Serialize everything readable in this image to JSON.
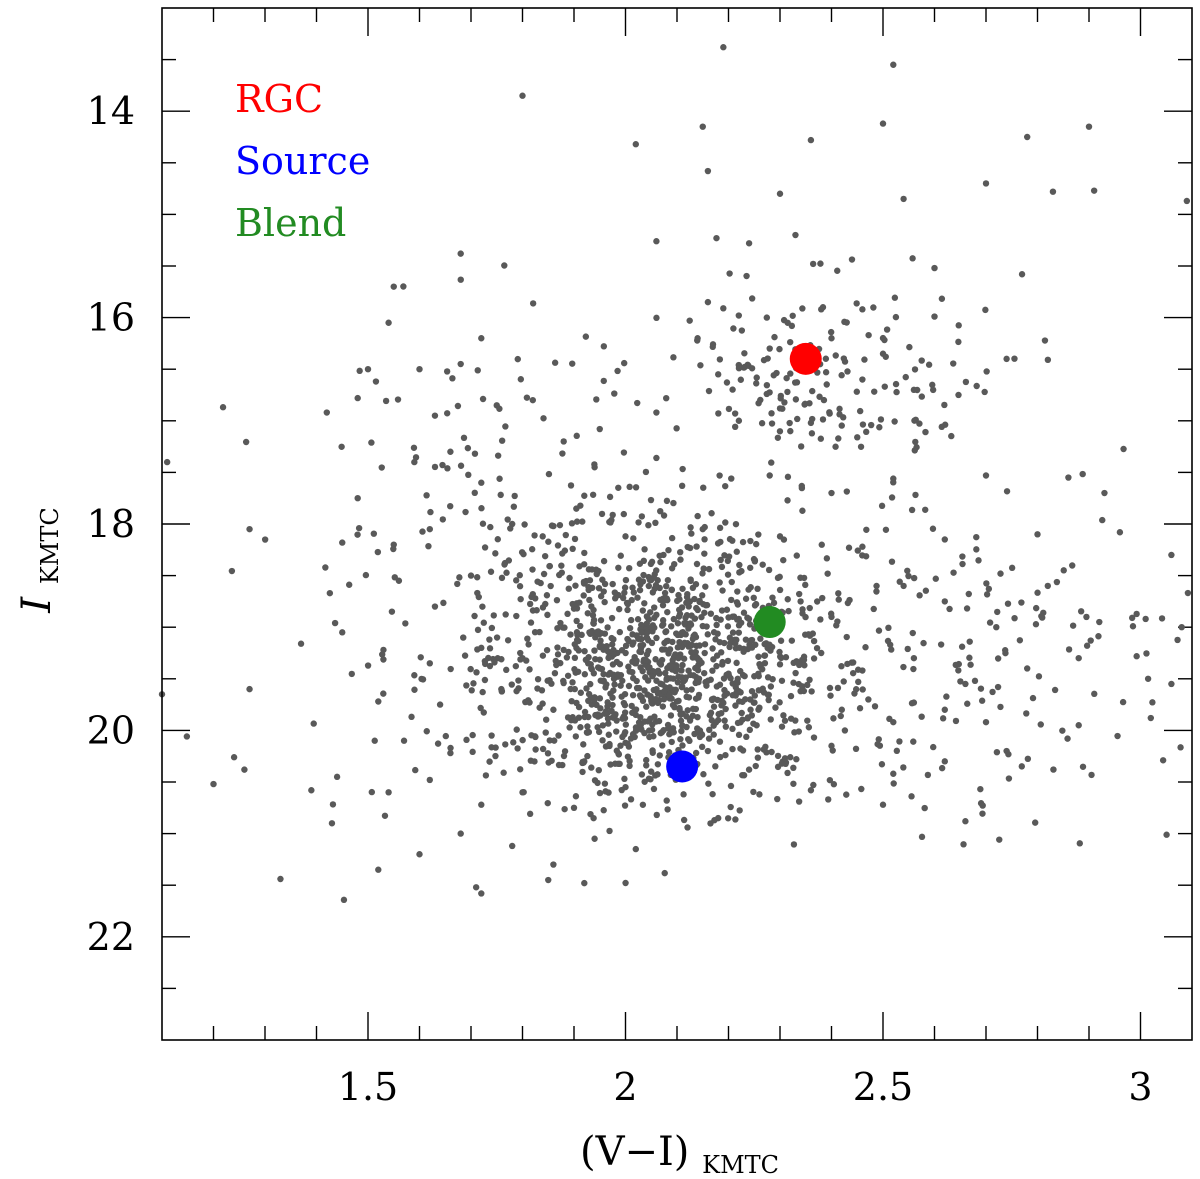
{
  "chart_data": {
    "type": "scatter",
    "title": "",
    "xlabel": {
      "main": "(V−I)",
      "sub": "KMTC"
    },
    "ylabel": {
      "main": "I",
      "sub": "KMTC"
    },
    "xlim": [
      1.1,
      3.1
    ],
    "ylim": [
      23.0,
      13.0
    ],
    "y_inverted": true,
    "grid": false,
    "legend_position": "top-left",
    "x_ticks": [
      {
        "value": 1.5,
        "label": "1.5"
      },
      {
        "value": 2.0,
        "label": "2"
      },
      {
        "value": 2.5,
        "label": "2.5"
      },
      {
        "value": 3.0,
        "label": "3"
      }
    ],
    "y_ticks": [
      {
        "value": 14,
        "label": "14"
      },
      {
        "value": 16,
        "label": "16"
      },
      {
        "value": 18,
        "label": "18"
      },
      {
        "value": 20,
        "label": "20"
      },
      {
        "value": 22,
        "label": "22"
      }
    ],
    "field_stars": {
      "color": "#595959",
      "description_points": [
        [
          1.8,
          13.85
        ],
        [
          2.19,
          13.38
        ],
        [
          2.52,
          13.55
        ],
        [
          2.02,
          14.32
        ],
        [
          2.15,
          14.15
        ],
        [
          2.16,
          14.58
        ],
        [
          2.3,
          14.8
        ],
        [
          2.36,
          14.28
        ],
        [
          2.5,
          14.12
        ],
        [
          2.78,
          14.25
        ],
        [
          2.9,
          14.15
        ],
        [
          2.54,
          14.85
        ],
        [
          2.7,
          14.7
        ],
        [
          2.33,
          15.2
        ],
        [
          2.06,
          15.26
        ],
        [
          1.68,
          15.38
        ],
        [
          2.24,
          15.28
        ],
        [
          2.6,
          15.52
        ],
        [
          2.77,
          15.58
        ],
        [
          2.83,
          14.78
        ],
        [
          2.91,
          14.77
        ],
        [
          3.09,
          14.87
        ],
        [
          1.54,
          16.05
        ],
        [
          1.55,
          15.7
        ],
        [
          1.72,
          16.2
        ],
        [
          2.16,
          15.85
        ],
        [
          2.22,
          15.98
        ],
        [
          2.38,
          15.92
        ],
        [
          2.46,
          15.92
        ],
        [
          2.6,
          15.99
        ],
        [
          2.4,
          16.2
        ],
        [
          2.28,
          16.3
        ],
        [
          2.5,
          16.35
        ],
        [
          2.46,
          16.6
        ],
        [
          2.18,
          16.55
        ],
        [
          2.56,
          16.7
        ],
        [
          2.74,
          16.4
        ],
        [
          2.14,
          16.2
        ],
        [
          2.22,
          16.46
        ],
        [
          2.3,
          16.88
        ],
        [
          2.32,
          17.1
        ],
        [
          2.45,
          17.16
        ],
        [
          2.36,
          17.02
        ],
        [
          1.42,
          16.92
        ],
        [
          1.48,
          16.78
        ],
        [
          1.5,
          16.5
        ],
        [
          1.6,
          16.5
        ],
        [
          1.68,
          16.45
        ],
        [
          1.63,
          16.95
        ],
        [
          1.75,
          16.85
        ],
        [
          1.82,
          16.8
        ],
        [
          1.88,
          17.2
        ],
        [
          1.95,
          17.08
        ],
        [
          2.06,
          16.92
        ],
        [
          1.66,
          17.3
        ],
        [
          1.59,
          17.4
        ],
        [
          1.72,
          17.6
        ],
        [
          1.94,
          17.45
        ],
        [
          2.06,
          17.36
        ],
        [
          2.11,
          17.63
        ],
        [
          2.28,
          17.53
        ],
        [
          2.4,
          17.7
        ],
        [
          2.52,
          17.56
        ],
        [
          2.7,
          17.53
        ],
        [
          2.86,
          17.55
        ],
        [
          2.93,
          17.7
        ],
        [
          1.11,
          17.4
        ],
        [
          1.48,
          17.75
        ],
        [
          1.55,
          18.2
        ],
        [
          1.27,
          18.05
        ],
        [
          1.45,
          18.18
        ],
        [
          1.62,
          18.05
        ],
        [
          1.78,
          18.0
        ],
        [
          1.86,
          18.02
        ],
        [
          1.92,
          18.28
        ],
        [
          2.0,
          18.12
        ],
        [
          2.15,
          18.05
        ],
        [
          2.3,
          18.12
        ],
        [
          2.46,
          18.22
        ],
        [
          2.62,
          18.15
        ],
        [
          2.8,
          18.1
        ],
        [
          2.96,
          18.08
        ],
        [
          3.06,
          18.3
        ],
        [
          1.56,
          18.55
        ],
        [
          1.63,
          18.8
        ],
        [
          1.7,
          18.5
        ],
        [
          1.82,
          18.68
        ],
        [
          1.9,
          18.82
        ],
        [
          1.98,
          18.72
        ],
        [
          2.06,
          18.88
        ],
        [
          2.12,
          18.68
        ],
        [
          2.22,
          18.92
        ],
        [
          2.34,
          18.75
        ],
        [
          2.4,
          18.9
        ],
        [
          2.54,
          18.6
        ],
        [
          2.62,
          18.75
        ],
        [
          2.72,
          19.0
        ],
        [
          2.82,
          18.6
        ],
        [
          2.92,
          18.95
        ],
        [
          3.01,
          18.92
        ],
        [
          3.08,
          19.0
        ],
        [
          1.37,
          19.16
        ],
        [
          1.45,
          19.05
        ],
        [
          1.53,
          19.22
        ],
        [
          1.62,
          19.35
        ],
        [
          1.72,
          19.2
        ],
        [
          1.8,
          19.3
        ],
        [
          1.88,
          19.22
        ],
        [
          1.95,
          19.4
        ],
        [
          2.02,
          19.35
        ],
        [
          2.08,
          19.5
        ],
        [
          2.14,
          19.3
        ],
        [
          2.2,
          19.45
        ],
        [
          2.3,
          19.36
        ],
        [
          2.38,
          19.25
        ],
        [
          2.46,
          19.42
        ],
        [
          2.56,
          19.3
        ],
        [
          2.66,
          19.55
        ],
        [
          2.78,
          19.4
        ],
        [
          2.88,
          19.3
        ],
        [
          3.06,
          19.55
        ],
        [
          1.1,
          19.65
        ],
        [
          1.27,
          19.6
        ],
        [
          1.52,
          19.72
        ],
        [
          1.64,
          19.75
        ],
        [
          1.76,
          19.62
        ],
        [
          1.86,
          19.8
        ],
        [
          1.94,
          19.68
        ],
        [
          2.02,
          19.85
        ],
        [
          2.1,
          19.72
        ],
        [
          2.18,
          19.9
        ],
        [
          2.26,
          19.78
        ],
        [
          2.34,
          19.62
        ],
        [
          2.42,
          19.8
        ],
        [
          2.52,
          19.92
        ],
        [
          2.62,
          19.8
        ],
        [
          2.7,
          19.92
        ],
        [
          2.88,
          19.95
        ],
        [
          3.02,
          19.88
        ],
        [
          1.57,
          20.1
        ],
        [
          1.66,
          20.22
        ],
        [
          1.74,
          20.05
        ],
        [
          1.84,
          20.18
        ],
        [
          1.92,
          20.3
        ],
        [
          2.0,
          20.12
        ],
        [
          2.16,
          20.2
        ],
        [
          2.24,
          20.38
        ],
        [
          2.32,
          20.26
        ],
        [
          2.4,
          20.15
        ],
        [
          2.52,
          20.42
        ],
        [
          2.62,
          20.3
        ],
        [
          2.74,
          20.2
        ],
        [
          1.24,
          20.26
        ],
        [
          1.26,
          20.38
        ],
        [
          1.44,
          20.45
        ],
        [
          1.54,
          20.6
        ],
        [
          1.62,
          20.48
        ],
        [
          1.72,
          20.72
        ],
        [
          1.8,
          20.6
        ],
        [
          1.9,
          20.75
        ],
        [
          2.0,
          20.55
        ],
        [
          2.08,
          20.68
        ],
        [
          2.18,
          20.85
        ],
        [
          2.26,
          20.62
        ],
        [
          2.36,
          20.58
        ],
        [
          2.5,
          20.72
        ],
        [
          2.66,
          20.88
        ],
        [
          1.2,
          20.52
        ],
        [
          1.39,
          20.58
        ],
        [
          1.43,
          20.9
        ],
        [
          1.52,
          21.35
        ],
        [
          1.6,
          21.2
        ],
        [
          1.68,
          21.0
        ],
        [
          1.78,
          21.12
        ],
        [
          1.86,
          21.3
        ],
        [
          1.94,
          21.05
        ],
        [
          2.02,
          21.15
        ],
        [
          1.33,
          21.44
        ],
        [
          1.71,
          21.52
        ],
        [
          1.85,
          21.45
        ],
        [
          1.92,
          21.48
        ],
        [
          1.72,
          21.58
        ]
      ]
    },
    "highlights": [
      {
        "name": "RGC",
        "x": 2.35,
        "y": 16.4,
        "color": "#ff0000"
      },
      {
        "name": "Source",
        "x": 2.11,
        "y": 20.35,
        "color": "#0000ff"
      },
      {
        "name": "Blend",
        "x": 2.28,
        "y": 18.95,
        "color": "#228b22"
      }
    ]
  }
}
